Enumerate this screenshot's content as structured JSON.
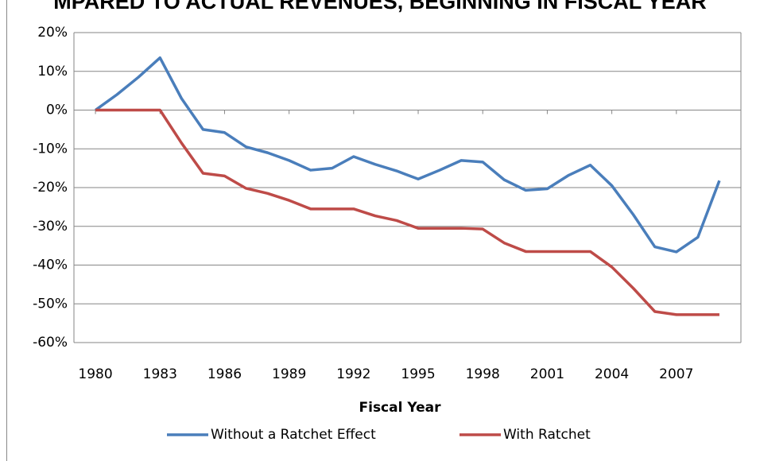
{
  "chart_data": {
    "type": "line",
    "title": "MPARED TO ACTUAL REVENUES, BEGINNING IN FISCAL YEAR",
    "x_label": "Fiscal Year",
    "x": [
      1980,
      1981,
      1982,
      1983,
      1984,
      1985,
      1986,
      1987,
      1988,
      1989,
      1990,
      1991,
      1992,
      1993,
      1994,
      1995,
      1996,
      1997,
      1998,
      1999,
      2000,
      2001,
      2002,
      2003,
      2004,
      2005,
      2006,
      2007,
      2008,
      2009
    ],
    "series": [
      {
        "name": "Without a Ratchet Effect",
        "color": "#4a7ebb",
        "values": [
          0,
          4,
          8.5,
          13.5,
          3,
          -5,
          -5.8,
          -9.5,
          -11,
          -13,
          -15.5,
          -15,
          -12,
          -14,
          -15.7,
          -17.8,
          -15.5,
          -13,
          -13.4,
          -18,
          -20.7,
          -20.3,
          -16.8,
          -14.2,
          -19.5,
          -27,
          -35.3,
          -36.6,
          -32.8,
          -18.2
        ]
      },
      {
        "name": "With Ratchet",
        "color": "#be4b48",
        "values": [
          0,
          0,
          0,
          0,
          -8.5,
          -16.3,
          -17,
          -20.2,
          -21.5,
          -23.3,
          -25.5,
          -25.5,
          -25.5,
          -27.3,
          -28.5,
          -30.5,
          -30.5,
          -30.5,
          -30.7,
          -34.3,
          -36.5,
          -36.5,
          -36.5,
          -36.5,
          -40.5,
          -46,
          -52,
          -52.8,
          -52.8,
          -52.8
        ]
      }
    ],
    "xlim": [
      1979,
      2010
    ],
    "xticks": [
      1980,
      1983,
      1986,
      1989,
      1992,
      1995,
      1998,
      2001,
      2004,
      2007
    ],
    "ylim": [
      -60,
      20
    ],
    "yticks": [
      {
        "value": 20,
        "label": "20%"
      },
      {
        "value": 10,
        "label": "10%"
      },
      {
        "value": 0,
        "label": "0%"
      },
      {
        "value": -10,
        "label": "-10%"
      },
      {
        "value": -20,
        "label": "-20%"
      },
      {
        "value": -30,
        "label": "-30%"
      },
      {
        "value": -40,
        "label": "-40%"
      },
      {
        "value": -50,
        "label": "-50%"
      },
      {
        "value": -60,
        "label": "-60%"
      }
    ],
    "grid": true,
    "legend": "bottom"
  }
}
